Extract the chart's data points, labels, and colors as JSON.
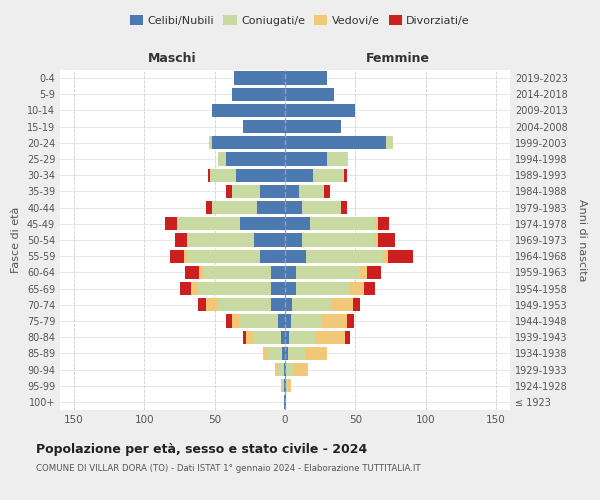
{
  "age_groups": [
    "100+",
    "95-99",
    "90-94",
    "85-89",
    "80-84",
    "75-79",
    "70-74",
    "65-69",
    "60-64",
    "55-59",
    "50-54",
    "45-49",
    "40-44",
    "35-39",
    "30-34",
    "25-29",
    "20-24",
    "15-19",
    "10-14",
    "5-9",
    "0-4"
  ],
  "birth_years": [
    "≤ 1923",
    "1924-1928",
    "1929-1933",
    "1934-1938",
    "1939-1943",
    "1944-1948",
    "1949-1953",
    "1954-1958",
    "1959-1963",
    "1964-1968",
    "1969-1973",
    "1974-1978",
    "1979-1983",
    "1984-1988",
    "1989-1993",
    "1994-1998",
    "1999-2003",
    "2004-2008",
    "2009-2013",
    "2014-2018",
    "2019-2023"
  ],
  "maschi": {
    "celibi": [
      1,
      1,
      1,
      2,
      3,
      5,
      10,
      10,
      10,
      18,
      22,
      32,
      20,
      18,
      35,
      42,
      52,
      30,
      52,
      38,
      36
    ],
    "coniugati": [
      0,
      1,
      4,
      10,
      20,
      28,
      38,
      52,
      48,
      52,
      47,
      45,
      32,
      20,
      18,
      6,
      2,
      0,
      0,
      0,
      0
    ],
    "vedovi": [
      0,
      1,
      2,
      4,
      5,
      5,
      8,
      5,
      3,
      2,
      1,
      0,
      0,
      0,
      0,
      0,
      0,
      0,
      0,
      0,
      0
    ],
    "divorziati": [
      0,
      0,
      0,
      0,
      2,
      4,
      6,
      8,
      10,
      10,
      8,
      8,
      4,
      4,
      2,
      0,
      0,
      0,
      0,
      0,
      0
    ]
  },
  "femmine": {
    "nubili": [
      1,
      1,
      1,
      2,
      3,
      4,
      5,
      8,
      8,
      15,
      12,
      18,
      12,
      10,
      20,
      30,
      72,
      40,
      50,
      35,
      30
    ],
    "coniugate": [
      0,
      1,
      5,
      12,
      18,
      22,
      28,
      38,
      45,
      55,
      52,
      46,
      28,
      18,
      22,
      15,
      5,
      0,
      0,
      0,
      0
    ],
    "vedove": [
      0,
      2,
      10,
      16,
      22,
      18,
      15,
      10,
      5,
      3,
      2,
      2,
      0,
      0,
      0,
      0,
      0,
      0,
      0,
      0,
      0
    ],
    "divorziate": [
      0,
      0,
      0,
      0,
      3,
      5,
      5,
      8,
      10,
      18,
      12,
      8,
      4,
      4,
      2,
      0,
      0,
      0,
      0,
      0,
      0
    ]
  },
  "colors": {
    "celibi": "#4c7ab0",
    "coniugati": "#c8d9a2",
    "vedovi": "#f0c878",
    "divorziati": "#cc2020"
  },
  "xlim": 160,
  "title": "Popolazione per età, sesso e stato civile - 2024",
  "subtitle": "COMUNE DI VILLAR DORA (TO) - Dati ISTAT 1° gennaio 2024 - Elaborazione TUTTITALIA.IT",
  "xlabel_left": "Maschi",
  "xlabel_right": "Femmine",
  "ylabel_left": "Fasce di età",
  "ylabel_right": "Anni di nascita",
  "bg_color": "#eeeeee",
  "plot_bg": "#ffffff"
}
